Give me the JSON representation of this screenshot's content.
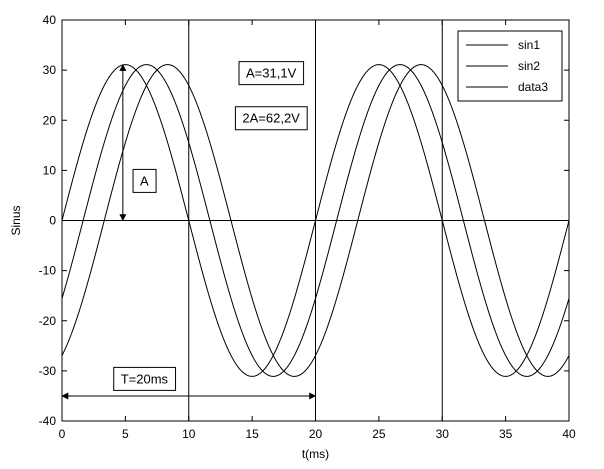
{
  "chart_data": {
    "type": "line",
    "title": "",
    "xlabel": "t(ms)",
    "ylabel": "Sinus",
    "xlim": [
      0,
      40
    ],
    "ylim": [
      -40,
      40
    ],
    "xticks": [
      0,
      5,
      10,
      15,
      20,
      25,
      30,
      35,
      40
    ],
    "yticks": [
      -40,
      -30,
      -20,
      -10,
      0,
      10,
      20,
      30,
      40
    ],
    "grid": false,
    "legend_position": "top-right",
    "series": [
      {
        "name": "sin1",
        "amplitude": 31.1,
        "period_ms": 20,
        "phase_deg": 0,
        "color": "#000000"
      },
      {
        "name": "sin2",
        "amplitude": 31.1,
        "period_ms": 20,
        "phase_deg": -30,
        "color": "#000000"
      },
      {
        "name": "data3",
        "amplitude": 31.1,
        "period_ms": 20,
        "phase_deg": -60,
        "color": "#000000"
      }
    ],
    "vertical_lines_x": [
      10,
      20,
      30
    ],
    "annotations": [
      {
        "id": "amp",
        "text": "A=31,1V",
        "x": 16.5,
        "y": 29.5
      },
      {
        "id": "peak2peak",
        "text": "2A=62,2V",
        "x": 16.5,
        "y": 20.5
      },
      {
        "id": "a",
        "text": "A",
        "x": 6.5,
        "y": 8
      },
      {
        "id": "period",
        "text": "T=20ms",
        "x": 6.5,
        "y": -31.5
      }
    ],
    "arrows": [
      {
        "id": "amplitude-arrow",
        "from": [
          4.8,
          0
        ],
        "to": [
          4.8,
          31.1
        ]
      },
      {
        "id": "period-arrow",
        "from": [
          0,
          -35
        ],
        "to": [
          20,
          -35
        ]
      }
    ]
  }
}
